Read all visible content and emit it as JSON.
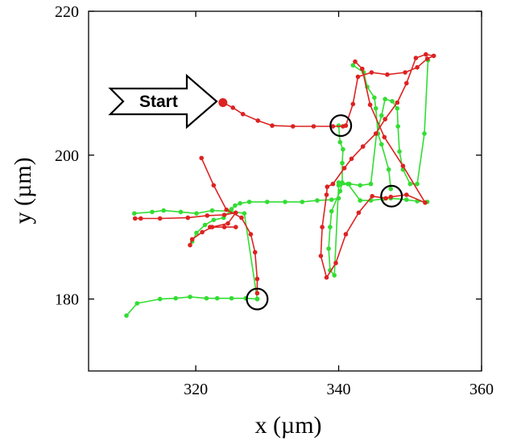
{
  "chart_data": {
    "type": "line",
    "xlabel": "x (µm)",
    "ylabel": "y (µm)",
    "xlim": [
      305,
      360
    ],
    "ylim": [
      170,
      220
    ],
    "xticks": [
      320,
      340,
      360
    ],
    "yticks": [
      180,
      200,
      220
    ],
    "x_tick_labels": [
      "320",
      "340",
      "360"
    ],
    "y_tick_labels": [
      "180",
      "200",
      "220"
    ],
    "grid": false,
    "colors": {
      "red_track": "#dd2222",
      "green_track": "#33dd33",
      "axes": "#000000"
    },
    "annotation": {
      "text": "Start",
      "shape": "arrow-right",
      "points_to": [
        323.8,
        207.3
      ]
    },
    "series": [
      {
        "color": "red",
        "marker_start": [
          323.8,
          207.3
        ],
        "x": [
          323.8,
          325.2,
          326.6,
          328.7,
          330.7,
          333.6,
          336.5,
          339.2,
          340.6,
          341.0,
          342.0,
          342.7,
          344.6,
          346.8,
          349.3,
          351.0,
          352.4,
          353.3,
          352.2,
          350.8,
          349.5,
          348.2,
          346.5,
          345.2,
          343.4,
          341.8,
          340.8,
          339.2,
          338.4,
          338.3,
          337.7,
          337.5,
          338.3,
          339.6,
          341.0,
          342.8,
          344.7,
          346.6,
          347.3,
          349.5,
          352.1,
          349.0,
          346.4,
          344.4,
          343.3,
          342.3
        ],
        "y": [
          207.3,
          206.6,
          205.7,
          204.8,
          204.1,
          204.0,
          204.0,
          204.0,
          204.0,
          204.1,
          207.1,
          210.9,
          211.5,
          211.2,
          211.5,
          212.2,
          213.4,
          213.8,
          214.0,
          213.5,
          210.0,
          207.3,
          205.0,
          203.0,
          201.2,
          199.5,
          198.2,
          196.0,
          195.6,
          194.5,
          190.0,
          186.0,
          183.0,
          185.0,
          189.0,
          192.0,
          194.3,
          194.0,
          194.2,
          194.5,
          193.4,
          198.5,
          202.5,
          207.0,
          212.0,
          213.0
        ]
      },
      {
        "color": "red",
        "x": [
          320.8,
          322.5,
          324.3,
          326.4,
          327.7,
          328.3,
          328.6,
          328.6
        ],
        "y": [
          199.6,
          195.8,
          192.4,
          191.3,
          189.0,
          186.5,
          182.8,
          180.8
        ]
      },
      {
        "color": "red",
        "x": [
          311.5,
          312.3,
          315.0,
          318.9,
          321.6,
          324.0,
          325.6,
          324.5,
          322.3,
          320.9,
          319.5,
          319.2
        ],
        "y": [
          191.2,
          191.2,
          191.2,
          191.3,
          191.6,
          191.7,
          192.0,
          190.5,
          190.0,
          189.3,
          188.3,
          187.5
        ]
      },
      {
        "color": "red",
        "x": [
          322.0,
          324.0,
          325.6
        ],
        "y": [
          190.0,
          190.0,
          190.0
        ]
      },
      {
        "color": "green",
        "x": [
          328.6,
          327.0,
          325.0,
          323.0,
          321.5,
          319.2,
          317.2,
          315.0,
          311.8,
          310.3
        ],
        "y": [
          180.0,
          180.1,
          180.1,
          180.1,
          180.1,
          180.3,
          180.1,
          180.0,
          179.4,
          177.7
        ]
      },
      {
        "color": "green",
        "x": [
          328.6,
          328.6,
          326.8,
          324.8,
          322.3,
          320.1,
          317.9,
          315.5,
          313.9,
          311.4
        ],
        "y": [
          180.0,
          180.0,
          191.9,
          192.2,
          192.3,
          191.9,
          192.1,
          192.3,
          192.1,
          191.9
        ]
      },
      {
        "color": "green",
        "x": [
          319.5,
          320.1,
          321.3,
          322.5,
          323.9,
          325.0,
          325.5,
          326.2,
          327.5,
          330.0,
          332.5,
          334.9,
          337.0,
          339.0,
          340.0
        ],
        "y": [
          188.0,
          189.2,
          190.3,
          191.0,
          191.3,
          192.5,
          193.0,
          193.3,
          193.5,
          193.5,
          193.5,
          193.5,
          193.7,
          193.8,
          194.0
        ]
      },
      {
        "color": "green",
        "x": [
          340.0,
          340.2,
          340.6,
          340.5,
          340.5,
          340.2,
          339.0,
          338.8,
          338.6,
          338.8,
          339.4,
          340.0,
          341.3,
          343.0,
          344.5,
          346.2,
          347.3,
          349.5,
          351.0,
          352.4
        ],
        "y": [
          204.1,
          201.8,
          200.8,
          198.9,
          196.2,
          195.0,
          192.2,
          190.0,
          187.0,
          184.0,
          183.3,
          195.8,
          196.0,
          193.7,
          193.7,
          193.9,
          194.0,
          193.8,
          193.6,
          193.5
        ]
      },
      {
        "color": "green",
        "x": [
          340.0,
          341.5,
          343.0,
          344.5,
          345.3,
          346.0,
          346.5,
          347.5,
          348.2,
          348.3,
          348.5,
          349.0,
          350.0,
          351.0,
          352.0,
          352.5
        ],
        "y": [
          196.2,
          196.0,
          195.8,
          196.0,
          203.0,
          205.5,
          207.8,
          207.5,
          206.5,
          204.0,
          200.5,
          198.0,
          196.0,
          196.0,
          203.0,
          213.2
        ]
      },
      {
        "color": "green",
        "x": [
          342.0,
          343.5,
          344.0,
          345.0,
          345.2,
          345.5,
          346.0,
          347.0,
          347.3
        ],
        "y": [
          212.5,
          211.5,
          209.5,
          208.0,
          206.5,
          203.0,
          201.5,
          198.0,
          195.3
        ]
      }
    ],
    "circles": [
      {
        "cx": 340.3,
        "cy": 204.1,
        "r_x": 1.45
      },
      {
        "cx": 347.4,
        "cy": 194.3,
        "r_x": 1.45
      },
      {
        "cx": 328.6,
        "cy": 180.0,
        "r_x": 1.45
      }
    ]
  }
}
